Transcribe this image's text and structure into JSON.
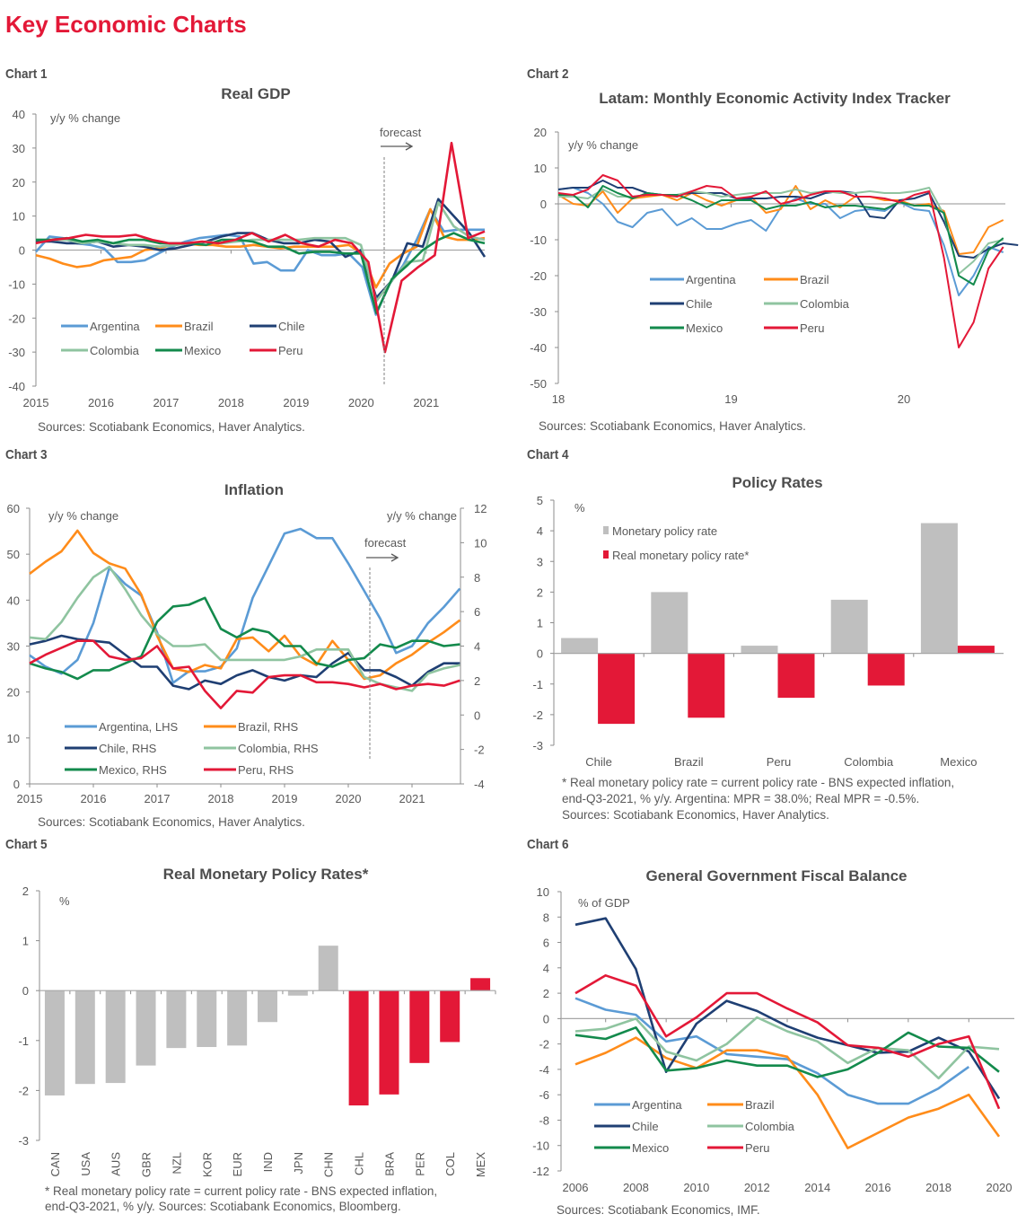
{
  "page": {
    "title": "Key Economic Charts"
  },
  "colors": {
    "argentina": "#5b9bd5",
    "brazil": "#ff8c1a",
    "chile": "#1f3f73",
    "colombia": "#8fc4a0",
    "mexico": "#138a4c",
    "peru": "#e31837",
    "grey_bar": "#bfbfbf",
    "red_bar": "#e31837",
    "axis": "#8c8c8c"
  },
  "chart_data": [
    {
      "label": "Chart 1",
      "type": "line",
      "title": "Real GDP",
      "ylabel": "y/y % change",
      "xlabel": "",
      "ylim": [
        -40,
        40
      ],
      "yticks": [
        40,
        30,
        20,
        10,
        0,
        -10,
        -20,
        -30,
        -40
      ],
      "xtick_labels": [
        "2015",
        "2016",
        "2017",
        "2018",
        "2019",
        "2020",
        "2021"
      ],
      "x_start": 2015,
      "x_step": 0.25,
      "annotation": "forecast",
      "forecast_start": 2020.25,
      "source": "Sources: Scotiabank Economics, Haver Analytics.",
      "legend": "bottom-left",
      "series": [
        {
          "name": "Argentina",
          "color_key": "argentina",
          "values": [
            -0.5,
            4.0,
            3.5,
            2.0,
            1.5,
            0.5,
            -3.5,
            -3.5,
            -3.0,
            -1.0,
            1.0,
            2.5,
            3.5,
            4.0,
            4.5,
            4.0,
            -4.0,
            -3.5,
            -6.0,
            -6.0,
            0.0,
            -1.5,
            -1.5,
            -1.0,
            -5.0,
            -19.0,
            -10.0,
            -4.5,
            3.0,
            12.0,
            5.5,
            6.0,
            6.0,
            6.0
          ]
        },
        {
          "name": "Brazil",
          "color_key": "brazil",
          "values": [
            -1.5,
            -2.5,
            -4.0,
            -5.0,
            -4.5,
            -3.0,
            -2.5,
            -2.0,
            0.0,
            0.5,
            1.5,
            2.0,
            1.5,
            1.5,
            1.0,
            1.0,
            1.5,
            1.0,
            0.5,
            1.0,
            1.0,
            1.0,
            1.0,
            1.5,
            -1.0,
            -11.0,
            -4.0,
            -1.0,
            1.0,
            12.0,
            4.0,
            3.0,
            3.0,
            3.5
          ]
        },
        {
          "name": "Chile",
          "color_key": "chile",
          "values": [
            2.5,
            2.5,
            2.0,
            2.0,
            2.5,
            1.0,
            1.5,
            1.0,
            0.0,
            0.5,
            1.5,
            2.5,
            4.0,
            5.0,
            5.0,
            3.0,
            2.0,
            2.0,
            3.0,
            2.5,
            -2.0,
            0.0,
            -14.0,
            -9.0,
            2.0,
            1.0,
            15.0,
            10.0,
            5.0,
            -2.0
          ]
        },
        {
          "name": "Colombia",
          "color_key": "colombia",
          "values": [
            3.0,
            3.0,
            3.0,
            2.0,
            2.5,
            2.0,
            1.5,
            1.5,
            1.0,
            1.5,
            2.0,
            2.5,
            2.0,
            2.5,
            3.0,
            3.0,
            3.0,
            3.0,
            3.5,
            3.5,
            3.5,
            1.5,
            -15.0,
            -9.0,
            -3.5,
            -3.0,
            14.0,
            7.0,
            4.0,
            3.0
          ]
        },
        {
          "name": "Mexico",
          "color_key": "mexico",
          "values": [
            3.0,
            3.0,
            3.5,
            2.5,
            3.0,
            2.0,
            3.0,
            3.0,
            2.0,
            2.0,
            2.0,
            1.5,
            3.0,
            3.0,
            2.5,
            1.0,
            1.0,
            -1.0,
            -0.5,
            -0.5,
            -1.0,
            -1.0,
            -18.5,
            -8.5,
            -4.5,
            0.0,
            3.0,
            5.0,
            3.0,
            2.0
          ]
        },
        {
          "name": "Peru",
          "color_key": "peru",
          "values": [
            2.0,
            3.0,
            3.5,
            4.5,
            4.0,
            4.0,
            4.5,
            3.0,
            2.0,
            2.0,
            2.5,
            2.0,
            3.0,
            5.0,
            2.5,
            4.5,
            2.0,
            1.0,
            3.0,
            2.0,
            -3.5,
            -30.0,
            -9.0,
            -5.0,
            -1.5,
            31.5,
            3.5,
            5.5
          ]
        }
      ]
    },
    {
      "label": "Chart 2",
      "type": "line",
      "title": "Latam: Monthly Economic Activity Index Tracker",
      "ylabel": "y/y % change",
      "xlabel": "",
      "ylim": [
        -50,
        20
      ],
      "yticks": [
        20,
        10,
        0,
        -10,
        -20,
        -30,
        -40,
        -50
      ],
      "xtick_labels": [
        "18",
        "19",
        "20"
      ],
      "source": "Sources: Scotiabank Economics, Haver Analytics.",
      "legend": "center-left",
      "series": [
        {
          "name": "Argentina",
          "color_key": "argentina",
          "values": [
            4.0,
            4.5,
            3.0,
            0.0,
            -5.0,
            -6.5,
            -2.5,
            -1.5,
            -6.0,
            -4.0,
            -7.0,
            -7.0,
            -5.5,
            -4.5,
            -7.5,
            -1.0,
            1.5,
            0.0,
            0.0,
            -4.0,
            -2.0,
            -1.5,
            -2.0,
            0.5,
            -1.5,
            -2.0,
            -11.5,
            -25.5,
            -20.0,
            -12.0,
            -13.5
          ]
        },
        {
          "name": "Brazil",
          "color_key": "brazil",
          "values": [
            2.5,
            0.0,
            -0.5,
            3.5,
            -2.5,
            1.5,
            2.0,
            2.5,
            1.0,
            3.0,
            1.0,
            -0.5,
            1.0,
            2.0,
            -2.5,
            -1.5,
            5.0,
            -1.5,
            1.0,
            -1.0,
            2.0,
            2.0,
            1.0,
            1.0,
            -0.5,
            0.0,
            -2.0,
            -14.0,
            -13.5,
            -6.5,
            -4.5
          ]
        },
        {
          "name": "Chile",
          "color_key": "chile",
          "values": [
            4.0,
            4.5,
            4.5,
            6.5,
            4.5,
            4.5,
            3.0,
            2.5,
            2.5,
            3.0,
            3.0,
            3.0,
            1.5,
            1.5,
            1.5,
            2.0,
            2.0,
            1.5,
            3.0,
            3.5,
            3.0,
            -3.5,
            -4.0,
            1.0,
            1.5,
            3.0,
            -5.0,
            -14.5,
            -15.0,
            -12.5,
            -11.0,
            -11.5
          ]
        },
        {
          "name": "Colombia",
          "color_key": "colombia",
          "values": [
            2.0,
            2.0,
            1.5,
            4.0,
            2.0,
            2.0,
            2.5,
            2.5,
            2.5,
            3.5,
            3.0,
            2.0,
            2.5,
            3.0,
            3.0,
            3.0,
            4.0,
            3.0,
            3.5,
            3.0,
            3.0,
            3.5,
            3.0,
            3.0,
            3.5,
            4.5,
            -3.0,
            -19.5,
            -16.0,
            -11.0,
            -10.0
          ]
        },
        {
          "name": "Mexico",
          "color_key": "mexico",
          "values": [
            2.5,
            2.5,
            -1.0,
            5.0,
            3.0,
            1.5,
            3.0,
            2.5,
            2.5,
            1.0,
            -1.0,
            1.0,
            1.0,
            1.0,
            -1.5,
            -0.5,
            -0.5,
            0.5,
            -1.0,
            -0.5,
            -0.5,
            -1.0,
            -1.5,
            0.5,
            -0.5,
            -0.5,
            -2.5,
            -20.0,
            -22.5,
            -13.0,
            -9.5
          ]
        },
        {
          "name": "Peru",
          "color_key": "peru",
          "values": [
            3.0,
            2.5,
            4.0,
            8.0,
            6.5,
            2.0,
            2.5,
            2.5,
            2.0,
            3.5,
            5.0,
            4.5,
            1.5,
            2.0,
            3.5,
            0.0,
            1.0,
            2.5,
            3.5,
            3.5,
            2.0,
            2.0,
            1.5,
            0.5,
            2.5,
            3.5,
            -15.0,
            -40.0,
            -33.0,
            -18.0,
            -12.0
          ]
        }
      ]
    },
    {
      "label": "Chart 3",
      "type": "line",
      "title": "Inflation",
      "ylabel": "y/y % change",
      "y2label": "y/y % change",
      "xlabel": "",
      "ylim": [
        0,
        60
      ],
      "y2lim": [
        -4,
        12
      ],
      "yticks": [
        60,
        50,
        40,
        30,
        20,
        10,
        0
      ],
      "y2ticks": [
        12,
        10,
        8,
        6,
        4,
        2,
        0,
        -2,
        -4
      ],
      "xtick_labels": [
        "2015",
        "2016",
        "2017",
        "2018",
        "2019",
        "2020",
        "2021"
      ],
      "x_start": 2015,
      "x_step": 0.25,
      "annotation": "forecast",
      "forecast_start": 2020.35,
      "source": "Sources: Scotiabank Economics, Haver Analytics.",
      "legend": "bottom-left",
      "series": [
        {
          "name": "Argentina, LHS",
          "axis": "left",
          "color_key": "argentina",
          "values": [
            28.0,
            25.5,
            24.0,
            27.0,
            35.0,
            47.0,
            43.5,
            41.0,
            33.0,
            22.0,
            24.5,
            24.5,
            25.5,
            29.5,
            40.5,
            47.5,
            54.5,
            55.5,
            53.5,
            53.5,
            48.0,
            42.0,
            36.0,
            28.5,
            30.0,
            35.0,
            38.5,
            42.5
          ]
        },
        {
          "name": "Brazil, RHS",
          "axis": "right",
          "color_key": "brazil",
          "values": [
            8.2,
            8.9,
            9.5,
            10.7,
            9.4,
            8.8,
            8.5,
            7.0,
            4.6,
            2.7,
            2.5,
            2.9,
            2.7,
            4.4,
            4.5,
            3.7,
            4.6,
            3.4,
            2.9,
            4.3,
            3.2,
            2.1,
            2.3,
            3.0,
            3.5,
            4.2,
            4.8,
            5.5
          ]
        },
        {
          "name": "Chile, RHS",
          "axis": "right",
          "color_key": "chile",
          "values": [
            4.1,
            4.3,
            4.6,
            4.4,
            4.3,
            4.2,
            3.5,
            2.8,
            2.8,
            1.7,
            1.5,
            2.0,
            1.8,
            2.3,
            2.6,
            2.2,
            2.0,
            2.3,
            2.2,
            3.0,
            3.6,
            2.6,
            2.6,
            2.2,
            1.7,
            2.5,
            3.0,
            3.0
          ]
        },
        {
          "name": "Colombia, RHS",
          "axis": "right",
          "color_key": "colombia",
          "values": [
            4.5,
            4.4,
            5.4,
            6.8,
            8.0,
            8.6,
            7.3,
            5.8,
            4.7,
            4.0,
            4.0,
            4.1,
            3.2,
            3.2,
            3.2,
            3.2,
            3.2,
            3.4,
            3.8,
            3.8,
            3.8,
            2.2,
            1.8,
            1.6,
            1.4,
            2.4,
            2.7,
            2.9
          ]
        },
        {
          "name": "Mexico, RHS",
          "axis": "right",
          "color_key": "mexico",
          "values": [
            3.0,
            2.7,
            2.5,
            2.1,
            2.6,
            2.6,
            3.0,
            3.4,
            5.4,
            6.3,
            6.4,
            6.8,
            5.0,
            4.5,
            5.0,
            4.8,
            4.0,
            4.0,
            3.0,
            2.8,
            3.2,
            3.3,
            4.1,
            3.9,
            4.3,
            4.3,
            4.0,
            4.1
          ]
        },
        {
          "name": "Peru, RHS",
          "axis": "right",
          "color_key": "peru",
          "values": [
            3.0,
            3.5,
            3.9,
            4.3,
            4.3,
            3.4,
            3.2,
            3.3,
            4.0,
            2.7,
            2.8,
            1.4,
            0.4,
            1.4,
            1.3,
            2.2,
            2.3,
            2.3,
            1.9,
            1.9,
            1.8,
            1.6,
            1.8,
            1.5,
            1.7,
            1.8,
            1.7,
            2.0
          ]
        }
      ]
    },
    {
      "label": "Chart 4",
      "type": "bar",
      "title": "Policy Rates",
      "ylabel": "%",
      "ylim": [
        -3,
        5
      ],
      "yticks": [
        5,
        4,
        3,
        2,
        1,
        0,
        -1,
        -2,
        -3
      ],
      "categories": [
        "Chile",
        "Brazil",
        "Peru",
        "Colombia",
        "Mexico"
      ],
      "legend": "top-left",
      "series": [
        {
          "name": "Monetary policy rate",
          "color_key": "grey_bar",
          "values": [
            0.5,
            2.0,
            0.25,
            1.75,
            4.25
          ]
        },
        {
          "name": "Real monetary policy rate*",
          "color_key": "red_bar",
          "values": [
            -2.3,
            -2.1,
            -1.45,
            -1.05,
            0.25
          ]
        }
      ],
      "notes": [
        "* Real monetary policy rate = current policy rate - BNS expected inflation,",
        "end-Q3-2021, % y/y. Argentina: MPR = 38.0%; Real MPR = -0.5%.",
        "Sources: Scotiabank Economics, Haver Analytics."
      ]
    },
    {
      "label": "Chart 5",
      "type": "bar",
      "title": "Real Monetary Policy Rates*",
      "ylabel": "%",
      "ylim": [
        -3,
        2
      ],
      "yticks": [
        2,
        1,
        0,
        -1,
        -2,
        -3
      ],
      "categories": [
        "CAN",
        "USA",
        "AUS",
        "GBR",
        "NZL",
        "KOR",
        "EUR",
        "IND",
        "JPN",
        "CHN",
        "CHL",
        "BRA",
        "PER",
        "COL",
        "MEX"
      ],
      "values": [
        -2.1,
        -1.87,
        -1.85,
        -1.5,
        -1.15,
        -1.13,
        -1.1,
        -0.63,
        -0.1,
        0.9,
        -2.3,
        -2.08,
        -1.45,
        -1.03,
        0.25
      ],
      "bar_colors": [
        "grey_bar",
        "grey_bar",
        "grey_bar",
        "grey_bar",
        "grey_bar",
        "grey_bar",
        "grey_bar",
        "grey_bar",
        "grey_bar",
        "grey_bar",
        "red_bar",
        "red_bar",
        "red_bar",
        "red_bar",
        "red_bar"
      ],
      "notes": [
        "* Real monetary policy rate = current policy rate - BNS expected inflation,",
        "end-Q3-2021, % y/y. Sources: Scotiabank Economics, Bloomberg."
      ]
    },
    {
      "label": "Chart 6",
      "type": "line",
      "title": "General Government Fiscal Balance",
      "ylabel": "% of GDP",
      "xlabel": "",
      "ylim": [
        -12,
        10
      ],
      "yticks": [
        10,
        8,
        6,
        4,
        2,
        0,
        -2,
        -4,
        -6,
        -8,
        -10,
        -12
      ],
      "xtick_labels": [
        "2006",
        "2008",
        "2010",
        "2012",
        "2014",
        "2016",
        "2018",
        "2020"
      ],
      "x": [
        2006,
        2007,
        2008,
        2009,
        2010,
        2011,
        2012,
        2013,
        2014,
        2015,
        2016,
        2017,
        2018,
        2019,
        2020
      ],
      "source": "Sources: Scotiabank Economics, IMF.",
      "legend": "bottom-left",
      "series": [
        {
          "name": "Argentina",
          "color_key": "argentina",
          "values": [
            1.6,
            0.7,
            0.3,
            -1.8,
            -1.4,
            -2.8,
            -3.0,
            -3.2,
            -4.3,
            -6.0,
            -6.7,
            -6.7,
            -5.5,
            -3.8,
            null
          ]
        },
        {
          "name": "Brazil",
          "color_key": "brazil",
          "values": [
            -3.6,
            -2.7,
            -1.5,
            -3.1,
            -3.9,
            -2.5,
            -2.5,
            -3.0,
            -6.0,
            -10.2,
            -9.0,
            -7.8,
            -7.1,
            -6.0,
            -9.3
          ]
        },
        {
          "name": "Chile",
          "color_key": "chile",
          "values": [
            7.4,
            7.9,
            3.9,
            -4.2,
            -0.4,
            1.4,
            0.6,
            -0.6,
            -1.5,
            -2.1,
            -2.7,
            -2.6,
            -1.5,
            -2.6,
            -6.3
          ]
        },
        {
          "name": "Colombia",
          "color_key": "colombia",
          "values": [
            -1.0,
            -0.8,
            0.0,
            -2.6,
            -3.3,
            -2.0,
            0.1,
            -1.0,
            -1.8,
            -3.5,
            -2.3,
            -2.5,
            -4.7,
            -2.2,
            -2.4
          ]
        },
        {
          "name": "Mexico",
          "color_key": "mexico",
          "values": [
            -1.3,
            -1.6,
            -0.7,
            -4.1,
            -3.9,
            -3.3,
            -3.7,
            -3.7,
            -4.6,
            -4.0,
            -2.7,
            -1.1,
            -2.2,
            -2.3,
            -4.2
          ]
        },
        {
          "name": "Peru",
          "color_key": "peru",
          "values": [
            2.0,
            3.4,
            2.6,
            -1.4,
            0.1,
            2.0,
            2.0,
            0.8,
            -0.3,
            -2.1,
            -2.3,
            -3.0,
            -2.0,
            -1.4,
            -7.1
          ]
        }
      ]
    }
  ]
}
